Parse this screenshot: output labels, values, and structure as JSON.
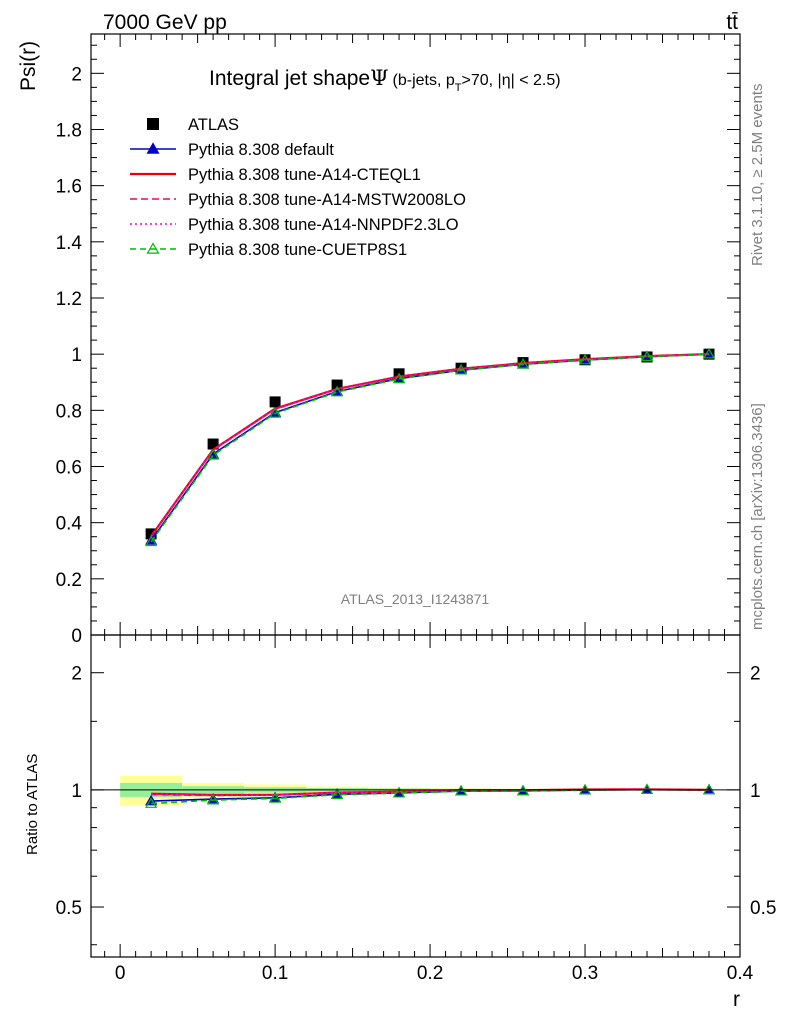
{
  "header": {
    "energy": "7000 GeV pp",
    "process": "tt̄"
  },
  "side_labels": {
    "rivet": "Rivet 3.1.10, ≥ 2.5M events",
    "mcplots": "mcplots.cern.ch [arXiv:1306.3436]"
  },
  "watermark": "ATLAS_2013_I1243871",
  "chart_data": {
    "type": "line",
    "title": "Integral jet shape",
    "title_symbol": "Ψ",
    "subtitle_pre": "(b-jets, p",
    "subtitle_sub": "T",
    "subtitle_post": ">70, |η| < 2.5)",
    "xlabel": "r",
    "ylabel": "Psi(r)",
    "ratio_ylabel": "Ratio to ATLAS",
    "xlim": [
      -0.0188,
      0.4
    ],
    "ylim": [
      0,
      2.14
    ],
    "ratio_ylim": [
      0.372,
      2.5
    ],
    "log_ratio": true,
    "x_ticks": [
      "0",
      "0.1",
      "0.2",
      "0.3",
      "0.4"
    ],
    "y_ticks": [
      "0",
      "0.2",
      "0.4",
      "0.6",
      "0.8",
      "1",
      "1.2",
      "1.4",
      "1.6",
      "1.8",
      "2"
    ],
    "ratio_y_ticks": [
      "0.5",
      "1",
      "2"
    ],
    "x": [
      0.02,
      0.06,
      0.1,
      0.14,
      0.18,
      0.22,
      0.26,
      0.3,
      0.34,
      0.38
    ],
    "bin_edges": [
      0.0,
      0.04,
      0.08,
      0.12,
      0.16,
      0.2,
      0.24,
      0.28,
      0.32,
      0.36,
      0.4
    ],
    "series": [
      {
        "name": "ATLAS",
        "color": "#000000",
        "style": "data",
        "values": [
          0.36,
          0.68,
          0.83,
          0.89,
          0.93,
          0.95,
          0.97,
          0.98,
          0.99,
          1.0
        ]
      },
      {
        "name": "Pythia 8.308 default",
        "color": "#0000cc",
        "style": "solid-triangle",
        "values": [
          0.337,
          0.644,
          0.792,
          0.867,
          0.913,
          0.943,
          0.964,
          0.979,
          0.991,
          1.0
        ]
      },
      {
        "name": "Pythia 8.308 tune-A14-CTEQL1",
        "color": "#ee0000",
        "style": "solid",
        "values": [
          0.352,
          0.66,
          0.806,
          0.876,
          0.92,
          0.948,
          0.968,
          0.982,
          0.993,
          1.0
        ]
      },
      {
        "name": "Pythia 8.308 tune-A14-MSTW2008LO",
        "color": "#ee0066",
        "style": "dashed",
        "values": [
          0.35,
          0.658,
          0.804,
          0.875,
          0.919,
          0.947,
          0.967,
          0.981,
          0.992,
          1.0
        ]
      },
      {
        "name": "Pythia 8.308 tune-A14-NNPDF2.3LO",
        "color": "#ff00cc",
        "style": "dotted",
        "values": [
          0.351,
          0.659,
          0.805,
          0.876,
          0.919,
          0.948,
          0.967,
          0.981,
          0.993,
          1.0
        ]
      },
      {
        "name": "Pythia 8.308 tune-CUETP8S1",
        "color": "#00bb00",
        "style": "dashed-open-triangle",
        "values": [
          0.332,
          0.64,
          0.789,
          0.865,
          0.912,
          0.943,
          0.964,
          0.979,
          0.991,
          1.0
        ]
      }
    ],
    "ratio_band_stat": [
      [
        0.958,
        1.042
      ],
      [
        0.978,
        1.022
      ],
      [
        0.984,
        1.016
      ],
      [
        0.989,
        1.011
      ],
      [
        0.992,
        1.008
      ],
      [
        0.994,
        1.006
      ],
      [
        0.996,
        1.004
      ],
      [
        0.998,
        1.002
      ],
      [
        0.999,
        1.001
      ],
      [
        1.0,
        1.0
      ]
    ],
    "ratio_band_total": [
      [
        0.913,
        1.087
      ],
      [
        0.958,
        1.042
      ],
      [
        0.968,
        1.032
      ],
      [
        0.98,
        1.02
      ],
      [
        0.986,
        1.014
      ],
      [
        0.99,
        1.01
      ],
      [
        0.993,
        1.007
      ],
      [
        0.998,
        1.002
      ],
      [
        0.999,
        1.001
      ],
      [
        1.0,
        1.0
      ]
    ],
    "legend_position": "top-left"
  }
}
